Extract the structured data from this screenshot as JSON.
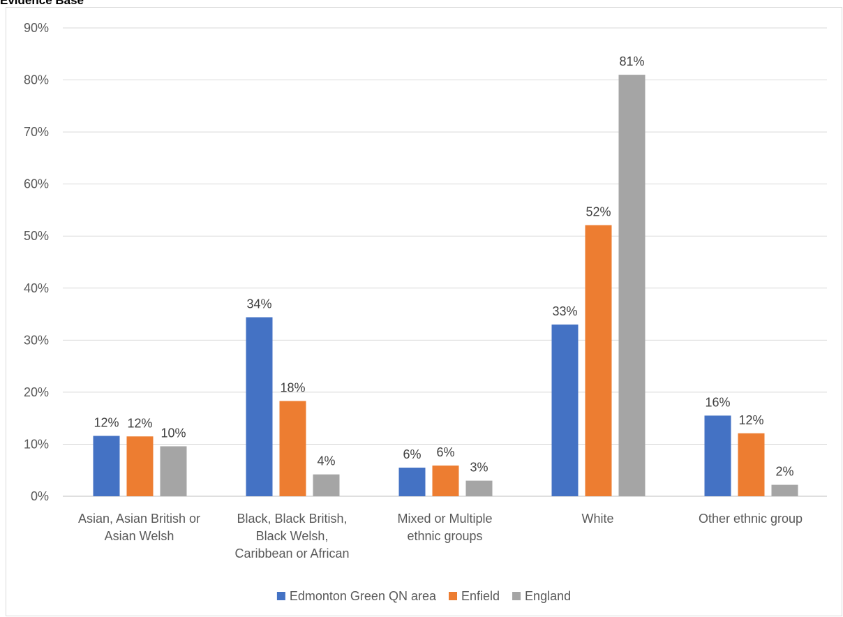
{
  "page_title": "Evidence Base",
  "colors": {
    "grid": "#d9d9d9",
    "axis": "#bfbfbf",
    "series": [
      "#4472c4",
      "#ed7d31",
      "#a5a5a5"
    ]
  },
  "chart_data": {
    "type": "bar",
    "title": "",
    "xlabel": "",
    "ylabel": "",
    "ylim": [
      0,
      90
    ],
    "y_tick_step": 10,
    "y_tick_suffix": "%",
    "grid": true,
    "legend_position": "bottom",
    "categories": [
      [
        "Asian, Asian British or",
        "Asian Welsh"
      ],
      [
        "Black, Black British,",
        "Black Welsh,",
        "Caribbean or African"
      ],
      [
        "Mixed or Multiple",
        "ethnic groups"
      ],
      [
        "White"
      ],
      [
        "Other ethnic group"
      ]
    ],
    "series": [
      {
        "name": "Edmonton Green QN area",
        "color": "#4472c4",
        "values": [
          11.6,
          34.4,
          5.5,
          33.0,
          15.5
        ],
        "labels": [
          "12%",
          "34%",
          "6%",
          "33%",
          "16%"
        ]
      },
      {
        "name": "Enfield",
        "color": "#ed7d31",
        "values": [
          11.5,
          18.3,
          5.9,
          52.1,
          12.1
        ],
        "labels": [
          "12%",
          "18%",
          "6%",
          "52%",
          "12%"
        ]
      },
      {
        "name": "England",
        "color": "#a5a5a5",
        "values": [
          9.6,
          4.2,
          3.0,
          81.0,
          2.2
        ],
        "labels": [
          "10%",
          "4%",
          "3%",
          "81%",
          "2%"
        ]
      }
    ]
  }
}
